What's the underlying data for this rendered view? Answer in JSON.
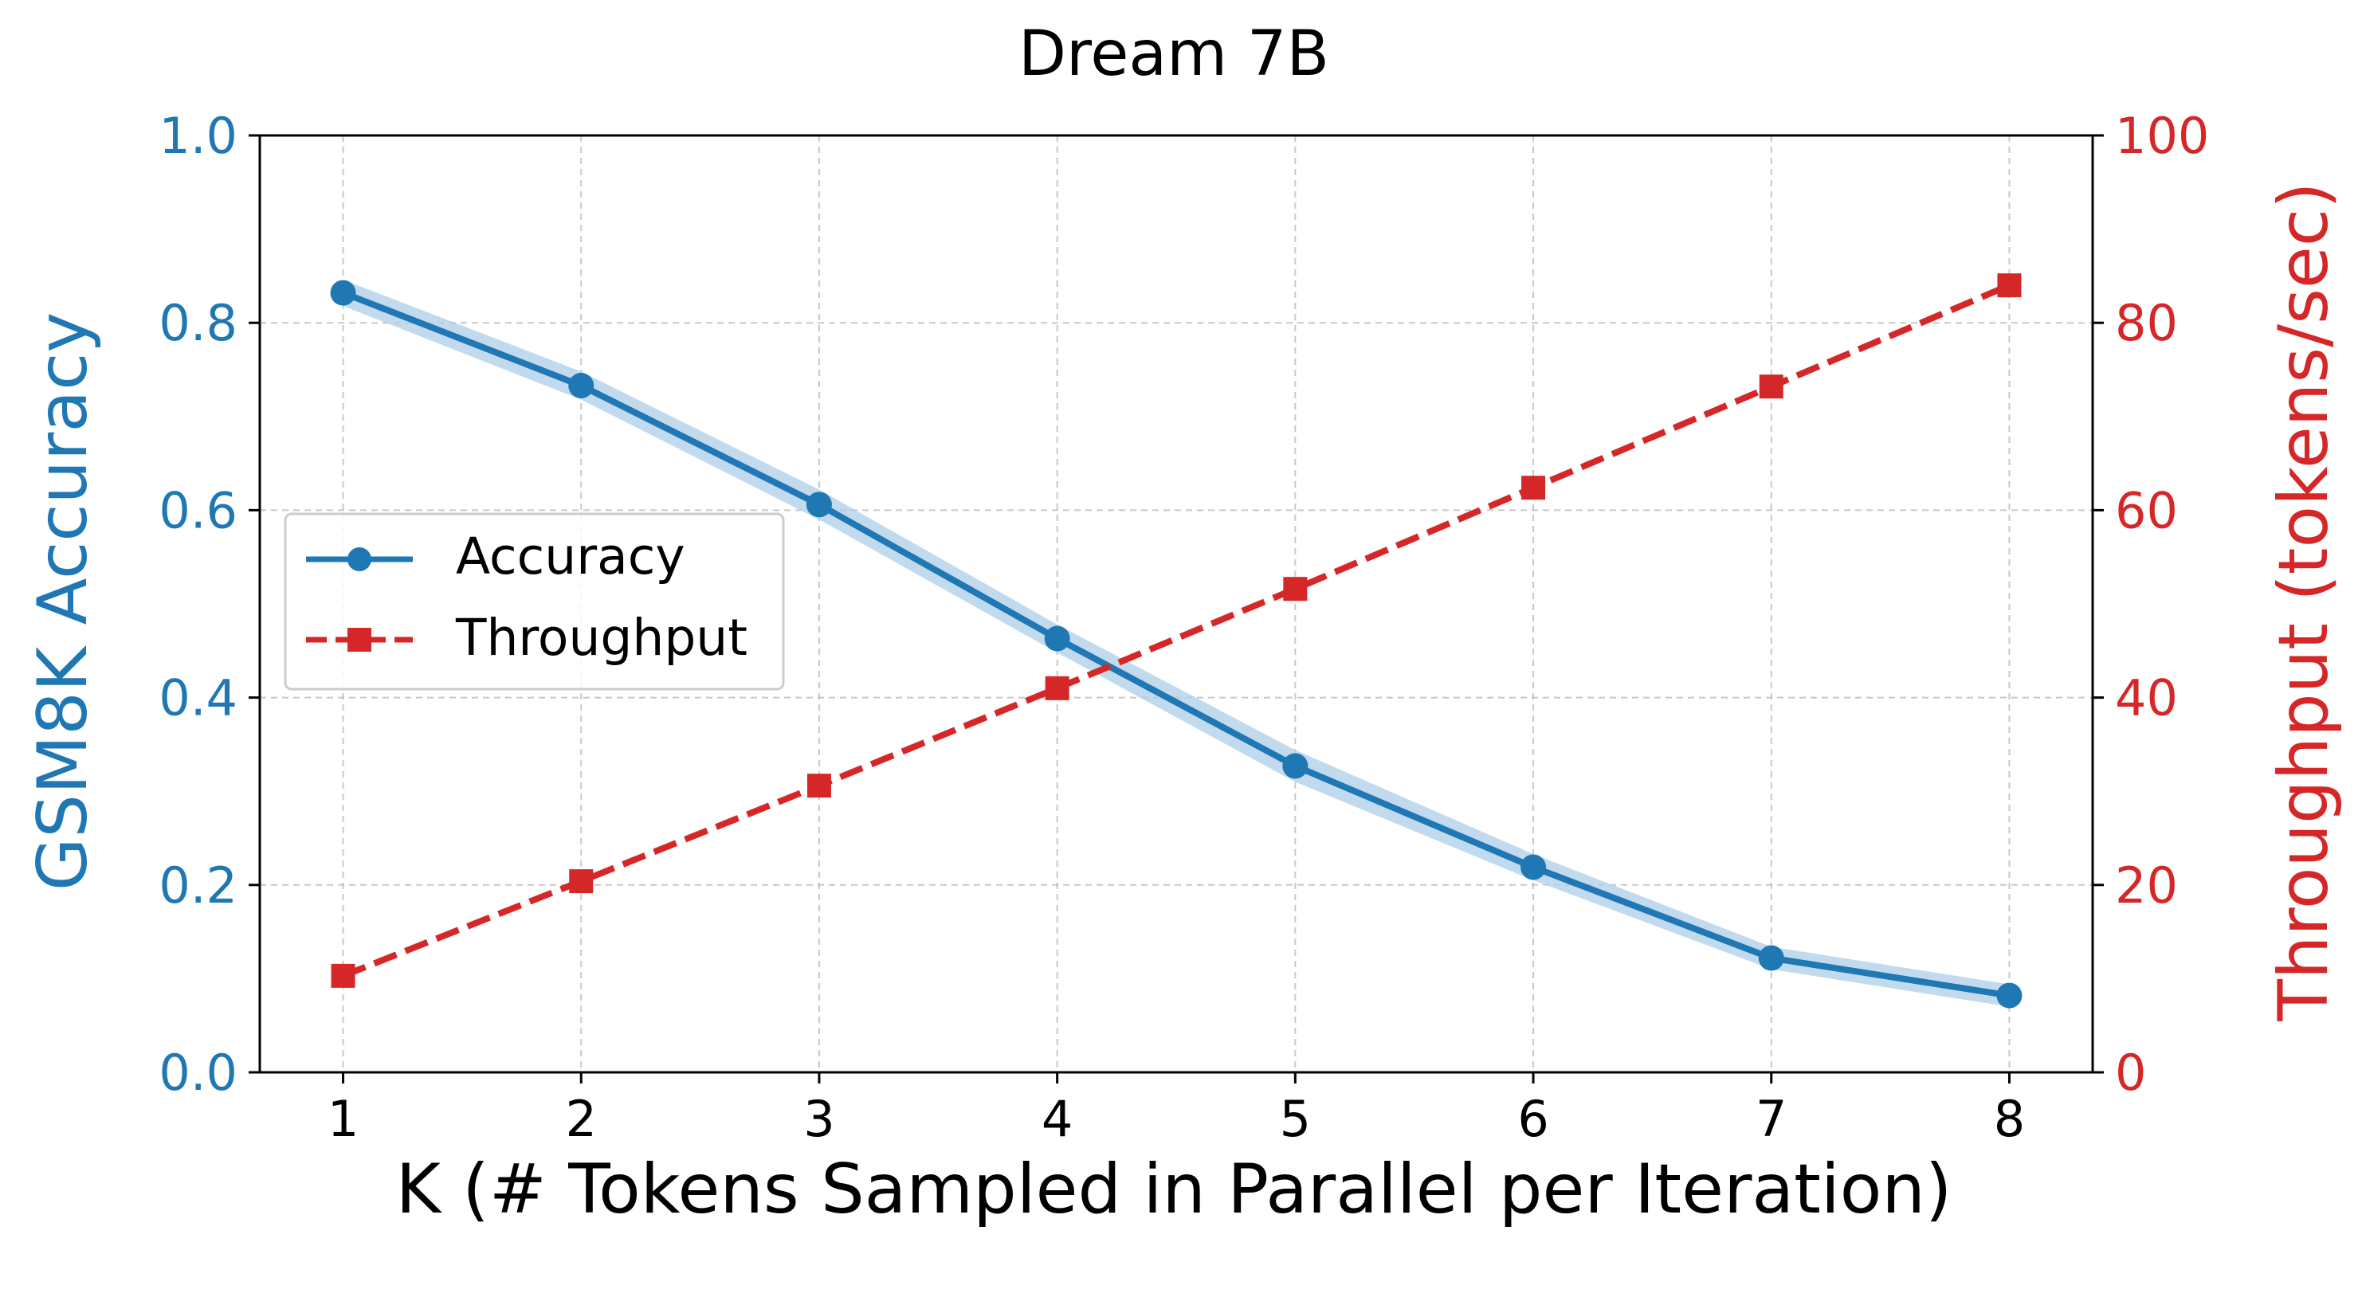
{
  "chart_data": {
    "type": "line",
    "title": "Dream 7B",
    "xlabel": "K (# Tokens Sampled in Parallel per Iteration)",
    "ylabel_left": "GSM8K Accuracy",
    "ylabel_right": "Throughput (tokens/sec)",
    "x": [
      1,
      2,
      3,
      4,
      5,
      6,
      7,
      8
    ],
    "x_ticks": [
      "1",
      "2",
      "3",
      "4",
      "5",
      "6",
      "7",
      "8"
    ],
    "xlim": [
      0.65,
      8.35
    ],
    "ylim_left": [
      0,
      1
    ],
    "ylim_right": [
      0,
      100
    ],
    "y_ticks_left": [
      "0.0",
      "0.2",
      "0.4",
      "0.6",
      "0.8",
      "1.0"
    ],
    "y_ticks_right": [
      "0",
      "20",
      "40",
      "60",
      "80",
      "100"
    ],
    "grid": true,
    "legend_position": "center-left",
    "series": [
      {
        "name": "Accuracy",
        "axis": "left",
        "values": [
          0.832,
          0.733,
          0.606,
          0.463,
          0.327,
          0.219,
          0.122,
          0.082
        ],
        "band_lower": [
          0.818,
          0.718,
          0.59,
          0.448,
          0.31,
          0.205,
          0.11,
          0.07
        ],
        "band_upper": [
          0.846,
          0.748,
          0.622,
          0.478,
          0.344,
          0.233,
          0.134,
          0.094
        ],
        "color": "#1f77b4",
        "band_color": "#aecde8",
        "style": "solid",
        "marker": "circle"
      },
      {
        "name": "Throughput",
        "axis": "right",
        "values": [
          10.3,
          20.4,
          30.6,
          41.0,
          51.6,
          62.4,
          73.2,
          84.0
        ],
        "color": "#d62728",
        "style": "dashed",
        "marker": "square"
      }
    ]
  }
}
